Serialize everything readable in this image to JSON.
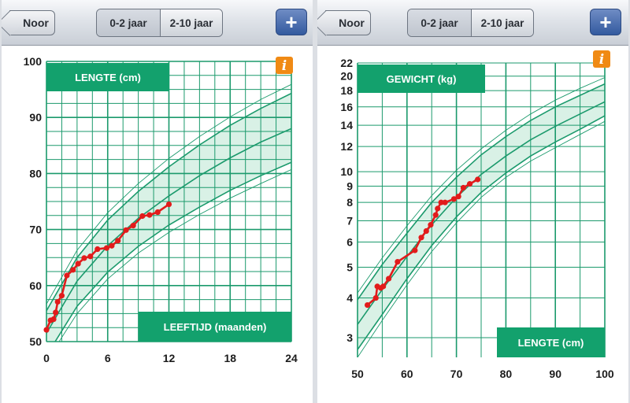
{
  "accent_colors": {
    "grid": "#1b9a6c",
    "band": "#d9f1e6",
    "data": "#e21b1b",
    "label": "#13a16d",
    "info": "#f08a14"
  },
  "screens": [
    {
      "nav": {
        "back_label": "Noor",
        "tab_infant": "0-2 jaar",
        "tab_child": "2-10 jaar",
        "add_label": "+"
      },
      "info_icon": "info-icon",
      "chart_data": {
        "type": "line",
        "title": "LENGTE (cm)",
        "xlabel": "LEEFTIJD (maanden)",
        "ylabel": "LENGTE (cm)",
        "xlim": [
          0,
          24
        ],
        "ylim": [
          50,
          100
        ],
        "x_ticks": [
          "0",
          "6",
          "12",
          "18",
          "24"
        ],
        "y_ticks": [
          "50",
          "60",
          "70",
          "80",
          "90",
          "100"
        ],
        "x": [
          0,
          0.4,
          0.7,
          0.9,
          1.1,
          1.5,
          2.0,
          2.6,
          3.1,
          3.7,
          4.3,
          5.0,
          5.9,
          6.4,
          7.0,
          7.8,
          8.5,
          9.4,
          10.1,
          10.9,
          12.0
        ],
        "series": [
          {
            "values": [
              52.1,
              53.8,
              54.0,
              55.2,
              57.1,
              58.2,
              61.8,
              62.8,
              63.9,
              64.9,
              65.2,
              66.5,
              66.7,
              67.1,
              68.0,
              69.9,
              70.7,
              72.4,
              72.6,
              73.1,
              74.5
            ]
          }
        ],
        "reference_lines": [
          {
            "x": [
              0,
              3,
              6,
              9,
              12,
              15,
              18,
              21,
              24
            ],
            "values": [
              46.5,
              55.0,
              61.2,
              65.8,
              69.5,
              72.7,
              75.6,
              78.2,
              80.7
            ]
          },
          {
            "x": [
              0,
              3,
              6,
              9,
              12,
              15,
              18,
              21,
              24
            ],
            "values": [
              47.5,
              56.3,
              62.4,
              67.0,
              70.8,
              74.0,
              77.0,
              79.6,
              82.0
            ]
          },
          {
            "x": [
              0,
              3,
              6,
              9,
              12,
              15,
              18,
              21,
              24
            ],
            "values": [
              51.5,
              60.8,
              67.1,
              72.0,
              76.0,
              79.6,
              82.8,
              85.6,
              88.0
            ]
          },
          {
            "x": [
              0,
              3,
              6,
              9,
              12,
              15,
              18,
              21,
              24
            ],
            "values": [
              55.5,
              65.0,
              71.7,
              76.8,
              81.2,
              85.1,
              88.6,
              91.6,
              94.3
            ]
          },
          {
            "x": [
              0,
              3,
              6,
              9,
              12,
              15,
              18,
              21,
              24
            ],
            "values": [
              56.7,
              66.3,
              73.0,
              78.2,
              82.7,
              86.6,
              90.1,
              93.2,
              95.9
            ]
          }
        ],
        "grid": true
      }
    },
    {
      "nav": {
        "back_label": "Noor",
        "tab_infant": "0-2 jaar",
        "tab_child": "2-10 jaar",
        "add_label": "+"
      },
      "info_icon": "info-icon",
      "chart_data": {
        "type": "line",
        "title": "GEWICHT (kg)",
        "xlabel": "LENGTE (cm)",
        "ylabel": "GEWICHT (kg)",
        "yscale": "log",
        "xlim": [
          50,
          100
        ],
        "ylim": [
          2.6,
          22
        ],
        "x_ticks": [
          "50",
          "60",
          "70",
          "80",
          "90",
          "100"
        ],
        "y_ticks": [
          "3",
          "4",
          "5",
          "6",
          "7",
          "8",
          "9",
          "10",
          "12",
          "14",
          "16",
          "18",
          "20",
          "22"
        ],
        "x": [
          52.0,
          53.7,
          54.0,
          54.7,
          55.2,
          56.3,
          58.1,
          61.6,
          62.9,
          63.9,
          64.8,
          65.8,
          66.2,
          66.9,
          67.7,
          69.5,
          70.4,
          71.4,
          72.7,
          74.3
        ],
        "series": [
          {
            "values": [
              3.8,
              4.0,
              4.35,
              4.3,
              4.35,
              4.6,
              5.2,
              5.65,
              6.2,
              6.5,
              6.8,
              7.3,
              7.65,
              8.0,
              8.0,
              8.2,
              8.35,
              8.9,
              9.15,
              9.45
            ]
          }
        ],
        "reference_lines": [
          {
            "x": [
              50,
              55,
              60,
              65,
              70,
              75,
              80,
              85,
              90,
              95,
              100
            ],
            "values": [
              2.6,
              3.4,
              4.4,
              5.6,
              6.9,
              8.3,
              9.6,
              10.8,
              11.9,
              13.1,
              14.4
            ]
          },
          {
            "x": [
              50,
              55,
              60,
              65,
              70,
              75,
              80,
              85,
              90,
              95,
              100
            ],
            "values": [
              2.75,
              3.55,
              4.6,
              5.85,
              7.2,
              8.6,
              9.9,
              11.2,
              12.4,
              13.6,
              15.0
            ]
          },
          {
            "x": [
              50,
              55,
              60,
              65,
              70,
              75,
              80,
              85,
              90,
              95,
              100
            ],
            "values": [
              3.3,
              4.25,
              5.4,
              6.8,
              8.3,
              9.8,
              11.2,
              12.6,
              13.9,
              15.2,
              16.6
            ]
          },
          {
            "x": [
              50,
              55,
              60,
              65,
              70,
              75,
              80,
              85,
              90,
              95,
              100
            ],
            "values": [
              3.95,
              5.1,
              6.4,
              8.0,
              9.6,
              11.3,
              12.9,
              14.5,
              16.0,
              17.4,
              18.9
            ]
          },
          {
            "x": [
              50,
              55,
              60,
              65,
              70,
              75,
              80,
              85,
              90,
              95,
              100
            ],
            "values": [
              4.15,
              5.35,
              6.75,
              8.4,
              10.1,
              11.8,
              13.5,
              15.2,
              16.8,
              18.3,
              19.8
            ]
          }
        ],
        "grid": true
      }
    }
  ]
}
